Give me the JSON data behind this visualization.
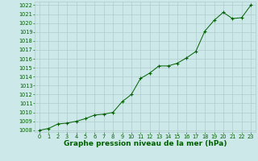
{
  "hours": [
    0,
    1,
    2,
    3,
    4,
    5,
    6,
    7,
    8,
    9,
    10,
    11,
    12,
    13,
    14,
    15,
    16,
    17,
    18,
    19,
    20,
    21,
    22,
    23
  ],
  "pressure": [
    1008.0,
    1008.2,
    1008.7,
    1008.8,
    1009.0,
    1009.3,
    1009.7,
    1009.8,
    1010.0,
    1011.2,
    1012.0,
    1013.8,
    1014.4,
    1015.2,
    1015.2,
    1015.5,
    1016.1,
    1016.8,
    1019.1,
    1020.3,
    1021.2,
    1020.5,
    1020.6,
    1022.0
  ],
  "ylim": [
    1008,
    1022
  ],
  "yticks": [
    1008,
    1009,
    1010,
    1011,
    1012,
    1013,
    1014,
    1015,
    1016,
    1017,
    1018,
    1019,
    1020,
    1021,
    1022
  ],
  "xlim": [
    0,
    23
  ],
  "xticks": [
    0,
    1,
    2,
    3,
    4,
    5,
    6,
    7,
    8,
    9,
    10,
    11,
    12,
    13,
    14,
    15,
    16,
    17,
    18,
    19,
    20,
    21,
    22,
    23
  ],
  "line_color": "#006000",
  "marker": "+",
  "marker_color": "#006000",
  "bg_color": "#cce8e8",
  "grid_color": "#b0cccc",
  "xlabel": "Graphe pression niveau de la mer (hPa)",
  "xlabel_color": "#006000",
  "tick_color": "#006000",
  "tick_labelsize": 4.8,
  "xlabel_fontsize": 6.5
}
